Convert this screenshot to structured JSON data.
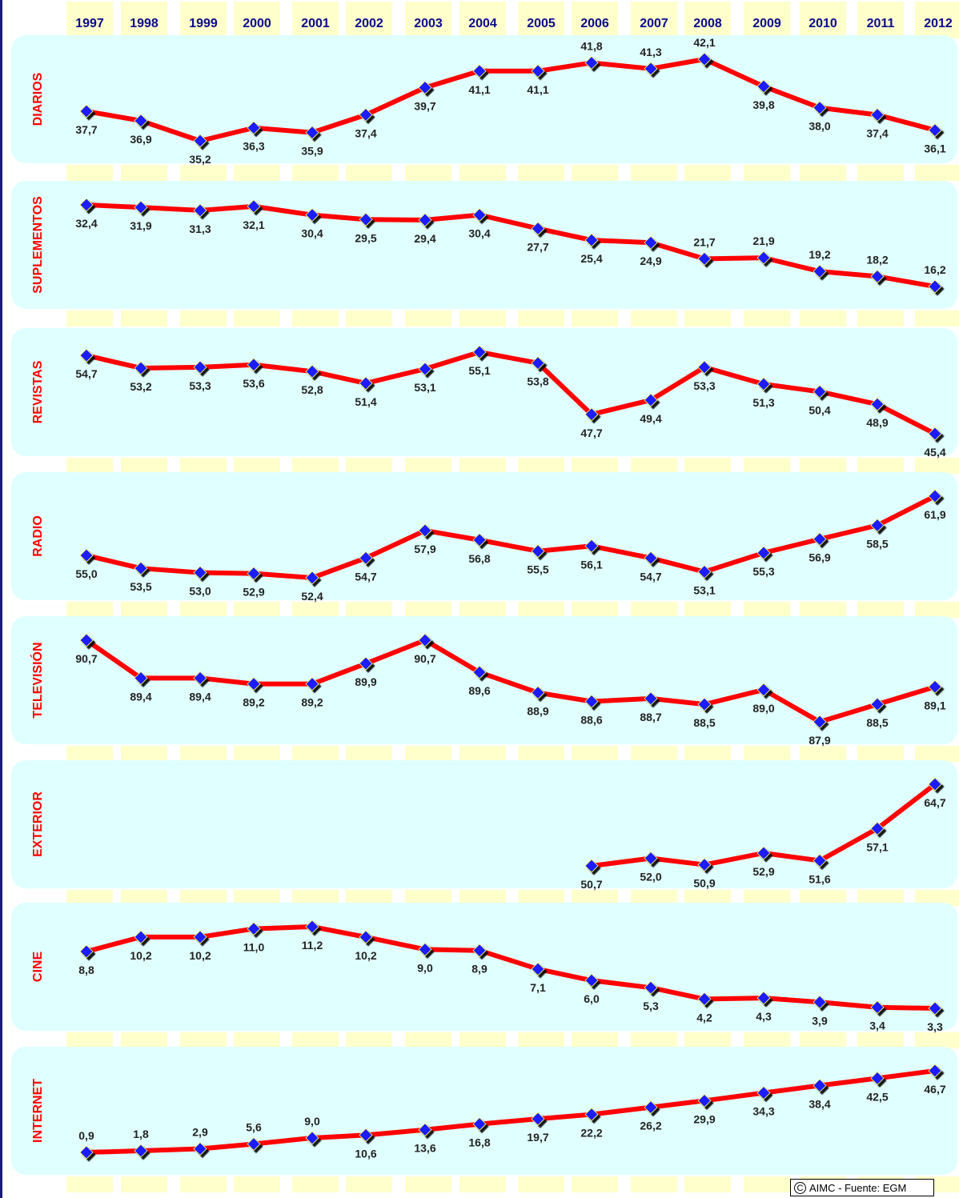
{
  "chart_data": {
    "type": "line",
    "x": [
      "1997",
      "1998",
      "1999",
      "2000",
      "2001",
      "2002",
      "2003",
      "2004",
      "2005",
      "2006",
      "2007",
      "2008",
      "2009",
      "2010",
      "2011",
      "2012"
    ],
    "colors": {
      "line": "#ff0000",
      "marker": "#1a1aff",
      "panel": "#e0ffff",
      "stripe": "#ffffcc",
      "year_text": "#0a0a8c",
      "label_text": "#ff0000"
    },
    "panels": [
      {
        "name": "DIARIOS",
        "values": [
          "37,7",
          "36,9",
          "35,2",
          "36,3",
          "35,9",
          "37,4",
          "39,7",
          "41,1",
          "41,1",
          "41,8",
          "41,3",
          "42,1",
          "39,8",
          "38,0",
          "37,4",
          "36,1"
        ],
        "label_pos": [
          "below",
          "below",
          "below",
          "below",
          "below",
          "below",
          "below",
          "below",
          "below",
          "above",
          "above",
          "above",
          "below",
          "below",
          "below",
          "below"
        ]
      },
      {
        "name": "SUPLEMENTOS",
        "values": [
          "32,4",
          "31,9",
          "31,3",
          "32,1",
          "30,4",
          "29,5",
          "29,4",
          "30,4",
          "27,7",
          "25,4",
          "24,9",
          "21,7",
          "21,9",
          "19,2",
          "18,2",
          "16,2"
        ],
        "label_pos": [
          "below",
          "below",
          "below",
          "below",
          "below",
          "below",
          "below",
          "below",
          "below",
          "below",
          "below",
          "above",
          "above",
          "above",
          "above",
          "above"
        ]
      },
      {
        "name": "REVISTAS",
        "values": [
          "54,7",
          "53,2",
          "53,3",
          "53,6",
          "52,8",
          "51,4",
          "53,1",
          "55,1",
          "53,8",
          "47,7",
          "49,4",
          "53,3",
          "51,3",
          "50,4",
          "48,9",
          "45,4"
        ],
        "label_pos": [
          "below",
          "below",
          "below",
          "below",
          "below",
          "below",
          "below",
          "below",
          "below",
          "below",
          "below",
          "below",
          "below",
          "below",
          "below",
          "below"
        ]
      },
      {
        "name": "RADIO",
        "values": [
          "55,0",
          "53,5",
          "53,0",
          "52,9",
          "52,4",
          "54,7",
          "57,9",
          "56,8",
          "55,5",
          "56,1",
          "54,7",
          "53,1",
          "55,3",
          "56,9",
          "58,5",
          "61,9"
        ],
        "label_pos": [
          "below",
          "below",
          "below",
          "below",
          "below",
          "below",
          "below",
          "below",
          "below",
          "below",
          "below",
          "below",
          "below",
          "below",
          "below",
          "below"
        ]
      },
      {
        "name": "TELEVISIÓN",
        "values": [
          "90,7",
          "89,4",
          "89,4",
          "89,2",
          "89,2",
          "89,9",
          "90,7",
          "89,6",
          "88,9",
          "88,6",
          "88,7",
          "88,5",
          "89,0",
          "87,9",
          "88,5",
          "89,1"
        ],
        "label_pos": [
          "below",
          "below",
          "below",
          "below",
          "below",
          "below",
          "below",
          "below",
          "below",
          "below",
          "below",
          "below",
          "below",
          "below",
          "below",
          "below"
        ]
      },
      {
        "name": "EXTERIOR",
        "values": [
          null,
          null,
          null,
          null,
          null,
          null,
          null,
          null,
          null,
          "50,7",
          "52,0",
          "50,9",
          "52,9",
          "51,6",
          "57,1",
          "64,7"
        ],
        "label_pos": [
          "below",
          "below",
          "below",
          "below",
          "below",
          "below",
          "below",
          "below",
          "below",
          "below",
          "below",
          "below",
          "below",
          "below",
          "below",
          "below"
        ]
      },
      {
        "name": "CINE",
        "values": [
          "8,8",
          "10,2",
          "10,2",
          "11,0",
          "11,2",
          "10,2",
          "9,0",
          "8,9",
          "7,1",
          "6,0",
          "5,3",
          "4,2",
          "4,3",
          "3,9",
          "3,4",
          "3,3"
        ],
        "label_pos": [
          "below",
          "below",
          "below",
          "below",
          "below",
          "below",
          "below",
          "below",
          "below",
          "below",
          "below",
          "below",
          "below",
          "below",
          "below",
          "below"
        ]
      },
      {
        "name": "INTERNET",
        "values": [
          "0,9",
          "1,8",
          "2,9",
          "5,6",
          "9,0",
          "10,6",
          "13,6",
          "16,8",
          "19,7",
          "22,2",
          "26,2",
          "29,9",
          "34,3",
          "38,4",
          "42,5",
          "46,7"
        ],
        "label_pos": [
          "above",
          "above",
          "above",
          "above",
          "above",
          "below",
          "below",
          "below",
          "below",
          "below",
          "below",
          "below",
          "below",
          "below",
          "below",
          "below"
        ]
      }
    ]
  },
  "footer": {
    "copyright_symbol": "C",
    "credit": "AIMC - Fuente: EGM"
  }
}
